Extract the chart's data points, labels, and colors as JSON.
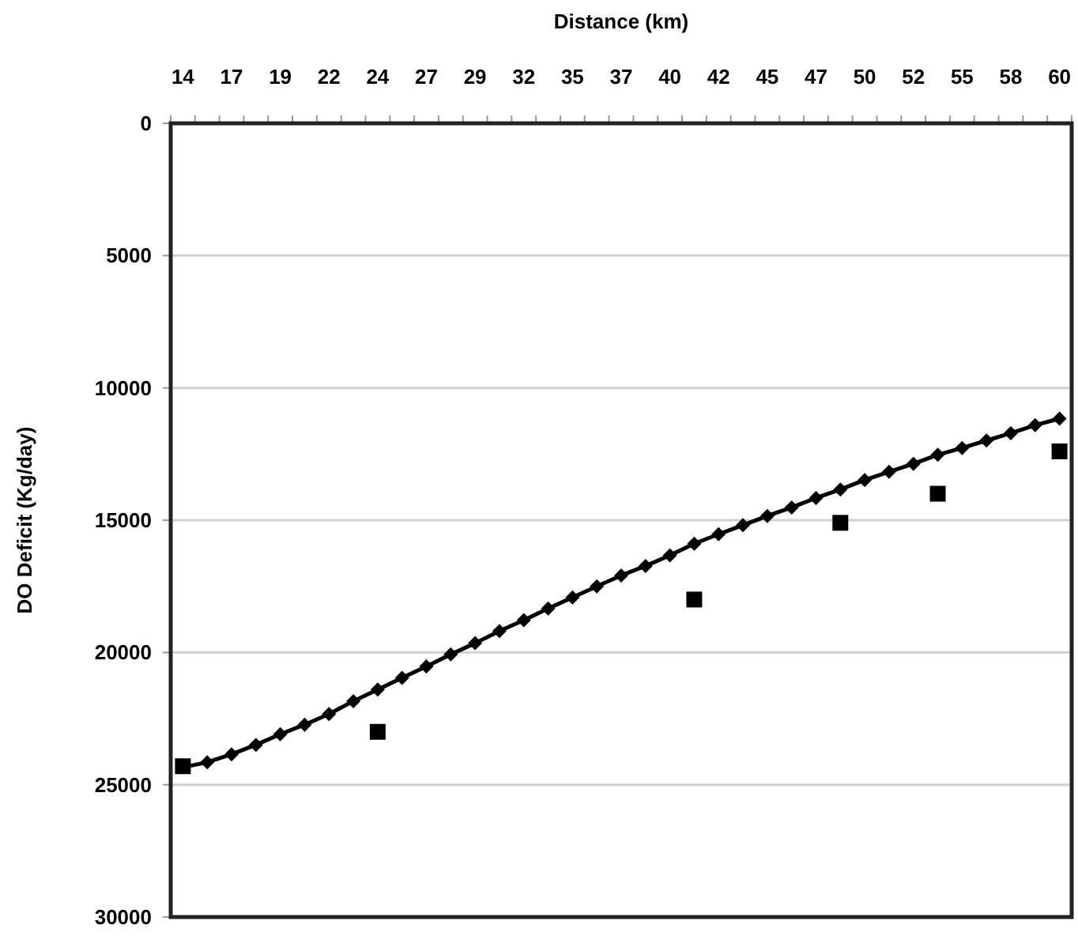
{
  "chart_data": {
    "type": "line",
    "xlabel": "Distance (km)",
    "ylabel": "DO Deficit (Kg/day)",
    "categories": [
      "14",
      null,
      "17",
      null,
      "19",
      null,
      "22",
      null,
      "24",
      null,
      "27",
      null,
      "29",
      null,
      "32",
      null,
      "35",
      null,
      "37",
      null,
      "40",
      null,
      "42",
      null,
      "45",
      null,
      "47",
      null,
      "50",
      null,
      "52",
      null,
      "55",
      null,
      "58",
      null,
      "60"
    ],
    "ylim": [
      30000,
      0
    ],
    "yticks": [
      0,
      5000,
      10000,
      15000,
      20000,
      25000,
      30000
    ],
    "grid": "y",
    "series": [
      {
        "color": "#000000",
        "marker": "diamond",
        "line_style": "solid",
        "values": [
          24340,
          24150,
          23850,
          23490,
          23090,
          22730,
          22330,
          21840,
          21400,
          20960,
          20530,
          20070,
          19650,
          19190,
          18780,
          18340,
          17920,
          17500,
          17090,
          16730,
          16330,
          15890,
          15530,
          15190,
          14840,
          14520,
          14160,
          13840,
          13480,
          13170,
          12870,
          12530,
          12270,
          11990,
          11710,
          11410,
          11160
        ]
      },
      {
        "type": "scatter",
        "color": "#000000",
        "marker": "square",
        "values": [
          24300,
          null,
          null,
          null,
          null,
          null,
          null,
          null,
          23000,
          null,
          null,
          null,
          null,
          null,
          null,
          null,
          null,
          null,
          null,
          null,
          null,
          18000,
          null,
          null,
          null,
          null,
          null,
          15100,
          null,
          null,
          null,
          14000,
          null,
          null,
          null,
          null,
          12400
        ]
      }
    ]
  }
}
